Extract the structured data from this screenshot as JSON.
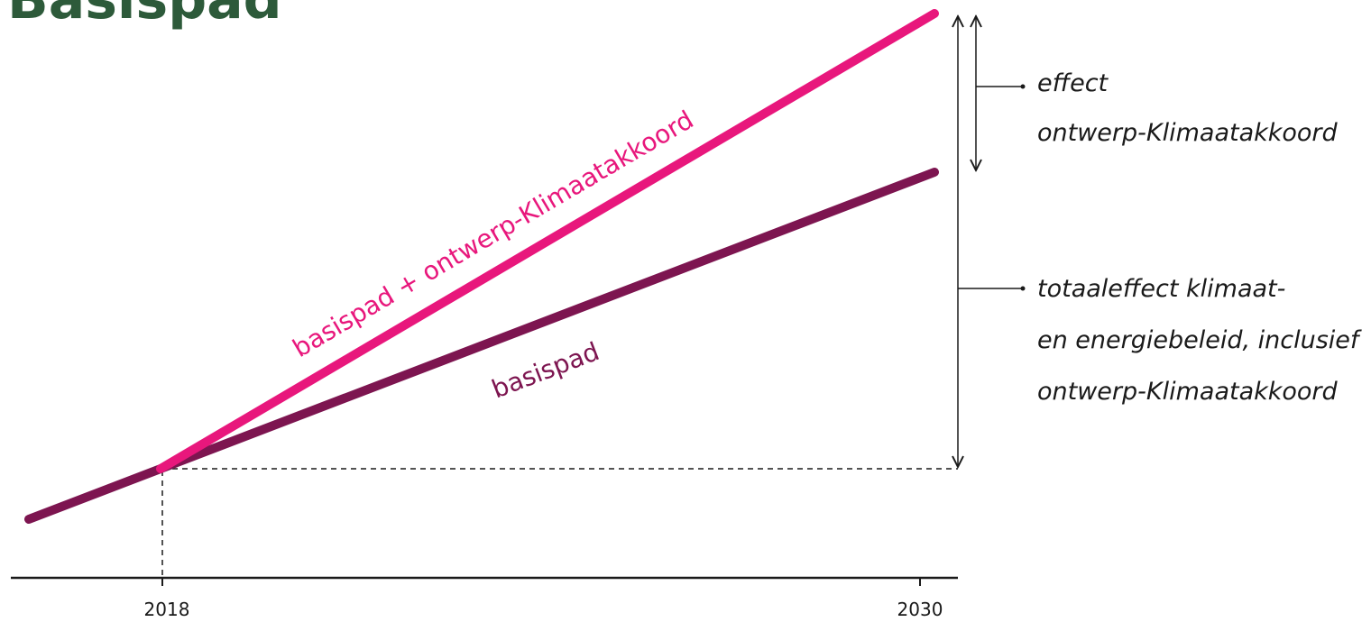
{
  "title": "Basispad",
  "colors": {
    "title": "#2d5a3a",
    "basispad": "#7d1550",
    "with_accord": "#e8177c",
    "axis": "#1a1a1a",
    "text_basispad": "#7d1550",
    "text_with_accord": "#e8177c"
  },
  "lines": {
    "basispad_label": "basispad",
    "with_accord_label": "basispad + ontwerp-Klimaatakkoord"
  },
  "axis": {
    "ticks": [
      "2018",
      "2030"
    ]
  },
  "annotations": {
    "effect": [
      "effect",
      "ontwerp-Klimaatakkoord"
    ],
    "total": [
      "totaaleffect klimaat-",
      "en energiebeleid, inclusief",
      "ontwerp-Klimaatakkoord"
    ]
  }
}
